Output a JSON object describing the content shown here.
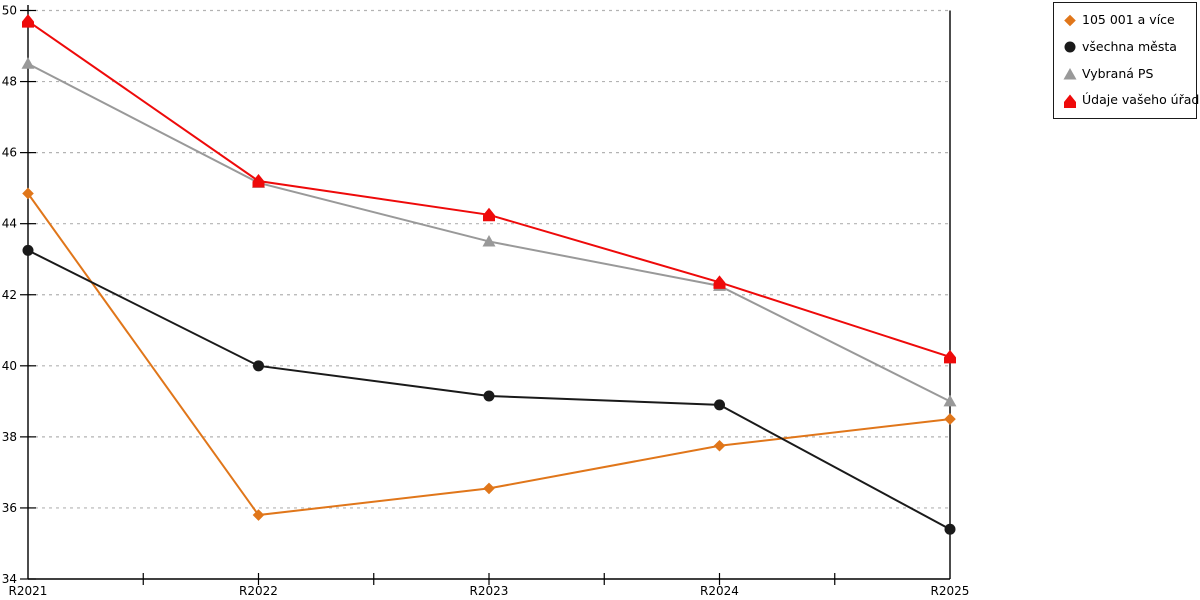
{
  "chart_data": {
    "type": "line",
    "title": "",
    "xlabel": "",
    "ylabel": "",
    "categories": [
      "R2021",
      "R2022",
      "R2023",
      "R2024",
      "R2025"
    ],
    "series": [
      {
        "name": "105 001 a více",
        "color": "#e0761a",
        "marker": "diamond",
        "values": [
          44.85,
          35.8,
          36.55,
          37.75,
          38.5
        ]
      },
      {
        "name": "všechna města",
        "color": "#1a1a1a",
        "marker": "circle",
        "values": [
          43.25,
          40.0,
          39.15,
          38.9,
          35.4
        ]
      },
      {
        "name": "Vybraná PS",
        "color": "#999999",
        "marker": "triangle",
        "values": [
          48.5,
          45.15,
          43.5,
          42.25,
          39.0
        ]
      },
      {
        "name": "Údaje vašeho úřadu",
        "color": "#ee0a0a",
        "marker": "pentagon",
        "values": [
          49.7,
          45.2,
          44.25,
          42.35,
          40.25
        ]
      }
    ],
    "ylim": [
      34,
      50
    ],
    "y_tick_step": 2,
    "y_tick_labels": [
      "34",
      "36",
      "38",
      "40",
      "42",
      "44",
      "46",
      "48",
      "50"
    ],
    "grid": "horizontal-dashed",
    "gridline_color": "#b3b3b3",
    "axis_color": "#000000",
    "legend_position": "top-right",
    "legend_border_color": "#1a1a1a"
  }
}
